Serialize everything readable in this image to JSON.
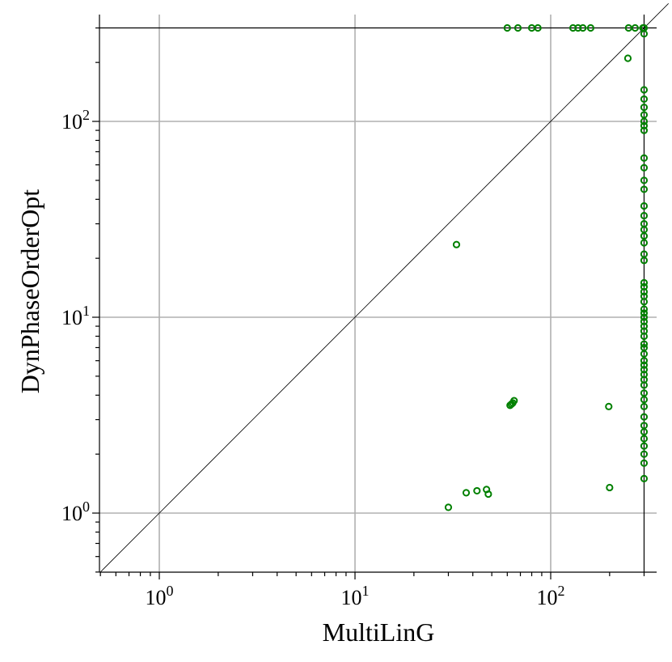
{
  "chart_data": {
    "type": "scatter",
    "title": "",
    "xlabel": "MultiLinG",
    "ylabel": "DynPhaseOrderOpt",
    "x_scale": "log",
    "y_scale": "log",
    "xlim": [
      0.5,
      300
    ],
    "ylim": [
      0.5,
      300
    ],
    "grid": true,
    "timeout_value": 300,
    "x_ticks": [
      {
        "value": 1,
        "base": "10",
        "exp": "0"
      },
      {
        "value": 10,
        "base": "10",
        "exp": "1"
      },
      {
        "value": 100,
        "base": "10",
        "exp": "2"
      }
    ],
    "y_ticks": [
      {
        "value": 1,
        "base": "10",
        "exp": "0"
      },
      {
        "value": 10,
        "base": "10",
        "exp": "1"
      },
      {
        "value": 100,
        "base": "10",
        "exp": "2"
      }
    ],
    "marker_color": "#008000",
    "diagonal": true,
    "series": [
      {
        "x": [
          60,
          68,
          80,
          86,
          130,
          138,
          146,
          160,
          250,
          270,
          296,
          300,
          248,
          33,
          62,
          63,
          64,
          65,
          198,
          200,
          30,
          37,
          42,
          47,
          48,
          300,
          300,
          300,
          300,
          300,
          300,
          300,
          300,
          300,
          300,
          300,
          300,
          300,
          300,
          300,
          300,
          300,
          300,
          300,
          300,
          300,
          300,
          300,
          300,
          300,
          300,
          300,
          300,
          300,
          300,
          300,
          300,
          300,
          300,
          300,
          300,
          300,
          300,
          300,
          300,
          300,
          300,
          300,
          300,
          300,
          300,
          300,
          300,
          300,
          300,
          300,
          300
        ],
        "y": [
          300,
          300,
          300,
          300,
          300,
          300,
          300,
          300,
          300,
          300,
          300,
          300,
          210,
          23.5,
          3.55,
          3.6,
          3.65,
          3.75,
          3.5,
          1.35,
          1.07,
          1.27,
          1.3,
          1.32,
          1.25,
          280,
          145,
          130,
          118,
          108,
          100,
          95,
          90,
          65,
          58,
          50,
          45,
          37,
          33,
          30,
          28,
          26,
          24,
          21,
          19.5,
          15,
          14.3,
          13.5,
          12.8,
          12,
          11,
          10.5,
          10,
          9.5,
          9,
          8.5,
          8,
          7.3,
          7,
          6.5,
          6,
          5.7,
          5.4,
          5.1,
          4.8,
          4.5,
          4.1,
          3.8,
          3.5,
          3.1,
          2.8,
          2.6,
          2.4,
          2.2,
          2,
          1.8,
          1.5
        ]
      }
    ]
  }
}
